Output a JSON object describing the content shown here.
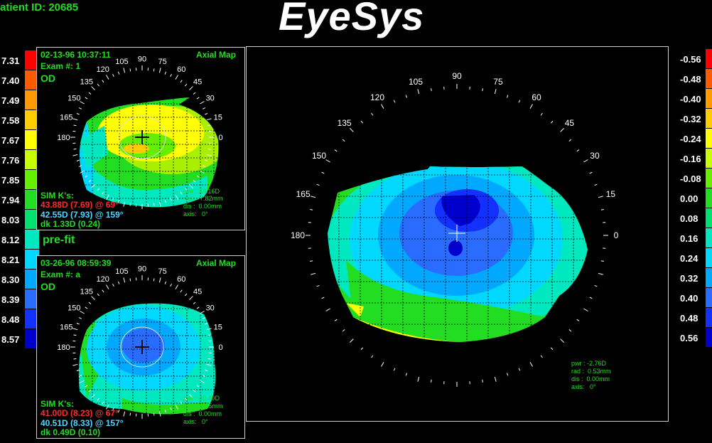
{
  "header": {
    "patient_id": "atient ID: 20685",
    "app_title": "EyeSys"
  },
  "left_scale": {
    "labels": [
      "7.31",
      "7.40",
      "7.49",
      "7.58",
      "7.67",
      "7.76",
      "7.85",
      "7.94",
      "8.03",
      "8.12",
      "8.21",
      "8.30",
      "8.39",
      "8.48",
      "8.57"
    ],
    "colors": [
      "#ff0000",
      "#ff5a00",
      "#ff9a00",
      "#ffcc00",
      "#ffff00",
      "#c8ff00",
      "#66ee00",
      "#22dd22",
      "#00e070",
      "#00e8c0",
      "#00d8ff",
      "#00a8ff",
      "#2a6cff",
      "#1430ff",
      "#0000cc"
    ]
  },
  "right_scale": {
    "labels": [
      "-0.56",
      "-0.48",
      "-0.40",
      "-0.32",
      "-0.24",
      "-0.16",
      "-0.08",
      "0.00",
      "0.08",
      "0.16",
      "0.24",
      "0.32",
      "0.40",
      "0.48",
      "0.56"
    ],
    "colors": [
      "#ff0000",
      "#ff5a00",
      "#ff9a00",
      "#ffcc00",
      "#ffff00",
      "#c8ff00",
      "#66ee00",
      "#22dd22",
      "#00e070",
      "#00e8c0",
      "#00d8ff",
      "#00a8ff",
      "#2a6cff",
      "#1430ff",
      "#0000cc"
    ]
  },
  "axis_labels": [
    "0",
    "15",
    "30",
    "45",
    "60",
    "75",
    "90",
    "105",
    "120",
    "135",
    "150",
    "165",
    "180"
  ],
  "exam1": {
    "datetime": "02-13-96 10:37:11",
    "map_type": "Axial Map",
    "exam_no": "Exam #: 1",
    "eye": "OD",
    "simk_title": "SIM K's:",
    "k1": "43.88D (7.69) @  69°",
    "k2": "42.55D (7.93) @ 159°",
    "dk": "dk  1.33D (0.24)",
    "pwr": "pwr : 43.16D",
    "rad": "rad :  7.82mm",
    "dis": "dis :  0.00mm",
    "axis": "axis:   0°"
  },
  "divider": {
    "label": "pre-fit"
  },
  "exam2": {
    "datetime": "03-26-96 08:59:39",
    "map_type": "Axial Map",
    "exam_no": "Exam #: a",
    "eye": "OD",
    "simk_title": "SIM K's:",
    "k1": "41.00D (8.23) @  67°",
    "k2": "40.51D (8.33) @ 157°",
    "dk": "dk  0.49D (0.10)",
    "pwr": "pwr : 40.40D",
    "rad": "rad :  8.35mm",
    "dis": "dis :  0.00mm",
    "axis": "axis:   0°"
  },
  "diff_map": {
    "pwr": "pwr : -2.76D",
    "rad": "rad :  0.53mm",
    "dis": "dis :  0.00mm",
    "axis": "axis:   0°"
  }
}
